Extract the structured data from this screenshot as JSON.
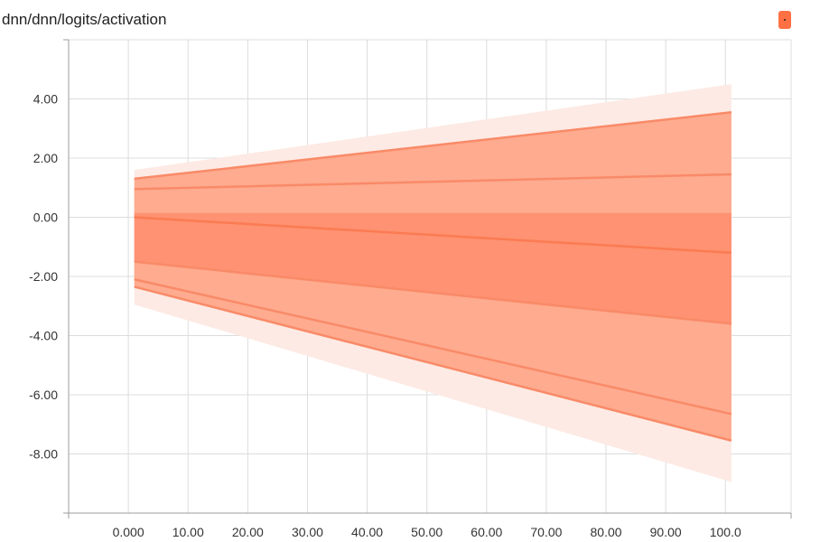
{
  "title": "dnn/dnn/logits/activation",
  "legend": {
    "color": "#ff7043",
    "marker": "."
  },
  "chart_data": {
    "type": "area",
    "title": "dnn/dnn/logits/activation",
    "xlabel": "",
    "ylabel": "",
    "xlim": [
      -10,
      111
    ],
    "ylim": [
      -10,
      6
    ],
    "grid": true,
    "x_ticks": [
      "0.000",
      "10.00",
      "20.00",
      "30.00",
      "40.00",
      "50.00",
      "60.00",
      "70.00",
      "80.00",
      "90.00",
      "100.0"
    ],
    "y_ticks": [
      "4.00",
      "2.00",
      "0.00",
      "-2.00",
      "-4.00",
      "-6.00",
      "-8.00"
    ],
    "x": [
      1,
      101
    ],
    "percentiles": [
      {
        "values": [
          1.6,
          4.5
        ]
      },
      {
        "values": [
          1.3,
          3.55
        ]
      },
      {
        "values": [
          0.95,
          1.45
        ]
      },
      {
        "values": [
          0.15,
          0.15
        ]
      },
      {
        "values": [
          0.0,
          -1.2
        ]
      },
      {
        "values": [
          -1.5,
          -3.6
        ]
      },
      {
        "values": [
          -2.1,
          -6.65
        ]
      },
      {
        "values": [
          -2.35,
          -7.55
        ]
      },
      {
        "values": [
          -2.95,
          -8.95
        ]
      }
    ],
    "colors": {
      "band_outer": "#fdeae4",
      "band_mid": "#feab8f",
      "band_inner": "#fe9272",
      "line": "#f98a68",
      "line_median": "#fb7b52"
    }
  }
}
